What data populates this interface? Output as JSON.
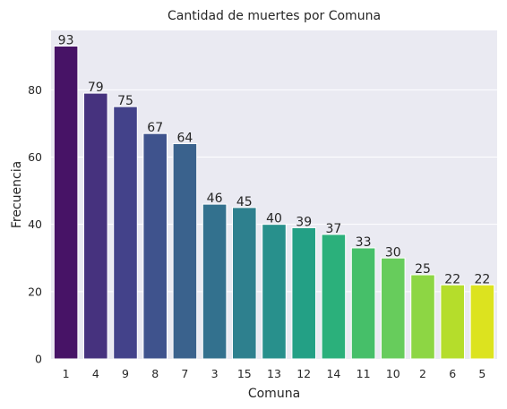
{
  "chart_data": {
    "type": "bar",
    "title": "Cantidad de muertes por Comuna",
    "xlabel": "Comuna",
    "ylabel": "Frecuencia",
    "categories": [
      "1",
      "4",
      "9",
      "8",
      "7",
      "3",
      "15",
      "13",
      "12",
      "14",
      "11",
      "10",
      "2",
      "6",
      "5"
    ],
    "values": [
      93,
      79,
      75,
      67,
      64,
      46,
      45,
      40,
      39,
      37,
      33,
      30,
      25,
      22,
      22
    ],
    "ylim": [
      0,
      97.65
    ],
    "yticks": [
      0,
      20,
      40,
      60,
      80
    ],
    "grid": true,
    "palette": "viridis",
    "colors": [
      "#471366",
      "#46327e",
      "#43428a",
      "#3f538d",
      "#3a628d",
      "#33718e",
      "#2e808e",
      "#28908c",
      "#23a085",
      "#2bb07b",
      "#46bf69",
      "#67cc5c",
      "#8dd644",
      "#b5dd2b",
      "#dce31f"
    ],
    "background_color": "#eaeaf2"
  }
}
